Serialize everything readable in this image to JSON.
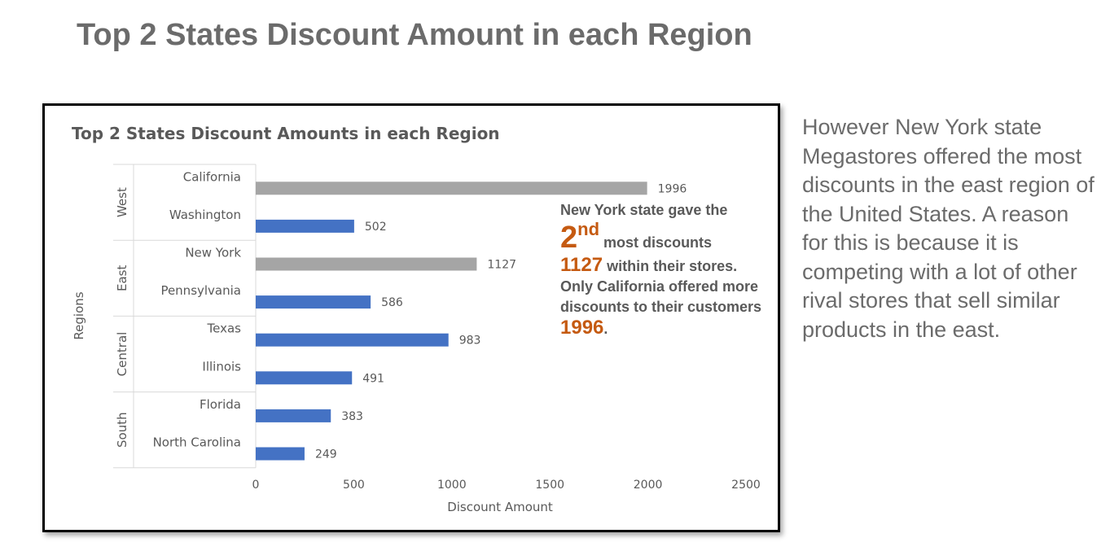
{
  "slide": {
    "title": "Top 2 States Discount Amount in each Region",
    "side_note": "However New York state Megastores offered the most discounts in the east region of the United States. A reason for this is because it is competing with a lot of other rival stores that sell similar products in the east."
  },
  "callout": {
    "line1": "New York state gave the",
    "rank_number": "2",
    "rank_suffix": "nd",
    "line2": "most discounts",
    "value_a": "1127",
    "line3": "within their stores. Only California offered more discounts to their customers",
    "value_b": "1996",
    "line4": "."
  },
  "colors": {
    "title_text": "#6b6b6b",
    "bar_highlight": "#a5a5a5",
    "bar_default": "#4472c4",
    "callout_accent": "#c55a11",
    "axis_text": "#595959"
  },
  "chart_data": {
    "type": "bar",
    "orientation": "horizontal",
    "title": "Top 2 States Discount Amounts in each Region",
    "xlabel": "Discount Amount",
    "ylabel": "Regions",
    "xlim": [
      0,
      2500
    ],
    "xticks": [
      0,
      500,
      1000,
      1500,
      2000,
      2500
    ],
    "grid": false,
    "legend": "none",
    "data_labels": true,
    "groups": [
      {
        "region": "West",
        "items": [
          {
            "state": "California",
            "value": 1996,
            "highlight": true
          },
          {
            "state": "Washington",
            "value": 502,
            "highlight": false
          }
        ]
      },
      {
        "region": "East",
        "items": [
          {
            "state": "New York",
            "value": 1127,
            "highlight": true
          },
          {
            "state": "Pennsylvania",
            "value": 586,
            "highlight": false
          }
        ]
      },
      {
        "region": "Central",
        "items": [
          {
            "state": "Texas",
            "value": 983,
            "highlight": false
          },
          {
            "state": "Illinois",
            "value": 491,
            "highlight": false
          }
        ]
      },
      {
        "region": "South",
        "items": [
          {
            "state": "Florida",
            "value": 383,
            "highlight": false
          },
          {
            "state": "North Carolina",
            "value": 249,
            "highlight": false
          }
        ]
      }
    ]
  }
}
